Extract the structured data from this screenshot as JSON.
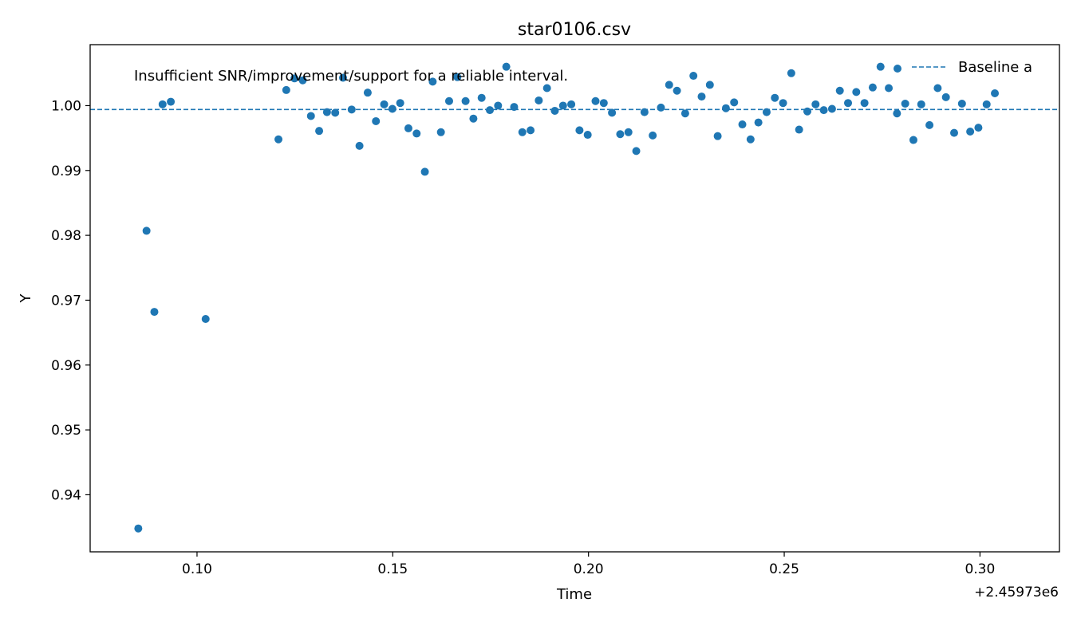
{
  "chart_data": {
    "type": "scatter",
    "title": "star0106.csv",
    "xlabel": "Time",
    "ylabel": "Y",
    "x_offset_label": "+2.45973e6",
    "annotation": "Insufficient SNR/improvement/support for a reliable interval.",
    "legend": {
      "position": "top-right",
      "entries": [
        {
          "label": "Baseline a",
          "style": "dashed-line"
        }
      ]
    },
    "grid": false,
    "xlim": [
      0.0727,
      0.3203
    ],
    "ylim": [
      0.9312,
      1.0094
    ],
    "xticks": [
      {
        "value": 0.1,
        "label": "0.10"
      },
      {
        "value": 0.15,
        "label": "0.15"
      },
      {
        "value": 0.2,
        "label": "0.20"
      },
      {
        "value": 0.25,
        "label": "0.25"
      },
      {
        "value": 0.3,
        "label": "0.30"
      }
    ],
    "yticks": [
      {
        "value": 0.94,
        "label": "0.94"
      },
      {
        "value": 0.95,
        "label": "0.95"
      },
      {
        "value": 0.96,
        "label": "0.96"
      },
      {
        "value": 0.97,
        "label": "0.97"
      },
      {
        "value": 0.98,
        "label": "0.98"
      },
      {
        "value": 0.99,
        "label": "0.99"
      },
      {
        "value": 1.0,
        "label": "1.00"
      }
    ],
    "baseline": 0.9994,
    "colors": {
      "points": "#1f77b4",
      "baseline": "#1f77b4"
    },
    "points": [
      [
        0.085,
        0.9348
      ],
      [
        0.0871,
        0.9807
      ],
      [
        0.0891,
        0.9682
      ],
      [
        0.0912,
        1.0002
      ],
      [
        0.0933,
        1.0006
      ],
      [
        0.1022,
        0.9671
      ],
      [
        0.1208,
        0.9948
      ],
      [
        0.1228,
        1.0024
      ],
      [
        0.1249,
        1.0042
      ],
      [
        0.127,
        1.0039
      ],
      [
        0.1291,
        0.9984
      ],
      [
        0.1312,
        0.9961
      ],
      [
        0.1332,
        0.999
      ],
      [
        0.1353,
        0.9989
      ],
      [
        0.1373,
        1.0043
      ],
      [
        0.1395,
        0.9994
      ],
      [
        0.1415,
        0.9938
      ],
      [
        0.1436,
        1.002
      ],
      [
        0.1457,
        0.9976
      ],
      [
        0.1478,
        1.0002
      ],
      [
        0.1499,
        0.9995
      ],
      [
        0.1519,
        1.0004
      ],
      [
        0.154,
        0.9965
      ],
      [
        0.1561,
        0.9957
      ],
      [
        0.1582,
        0.9898
      ],
      [
        0.1602,
        1.0037
      ],
      [
        0.1623,
        0.9959
      ],
      [
        0.1644,
        1.0007
      ],
      [
        0.1665,
        1.0044
      ],
      [
        0.1686,
        1.0007
      ],
      [
        0.1706,
        0.998
      ],
      [
        0.1727,
        1.0012
      ],
      [
        0.1748,
        0.9993
      ],
      [
        0.1769,
        1.0
      ],
      [
        0.179,
        1.006
      ],
      [
        0.181,
        0.9998
      ],
      [
        0.1831,
        0.9959
      ],
      [
        0.1852,
        0.9962
      ],
      [
        0.1873,
        1.0008
      ],
      [
        0.1894,
        1.0027
      ],
      [
        0.1914,
        0.9992
      ],
      [
        0.1935,
        1.0
      ],
      [
        0.1956,
        1.0002
      ],
      [
        0.1977,
        0.9962
      ],
      [
        0.1998,
        0.9955
      ],
      [
        0.2018,
        1.0007
      ],
      [
        0.2039,
        1.0004
      ],
      [
        0.206,
        0.9989
      ],
      [
        0.2081,
        0.9956
      ],
      [
        0.2102,
        0.9959
      ],
      [
        0.2122,
        0.993
      ],
      [
        0.2143,
        0.999
      ],
      [
        0.2164,
        0.9954
      ],
      [
        0.2185,
        0.9997
      ],
      [
        0.2206,
        1.0032
      ],
      [
        0.2226,
        1.0023
      ],
      [
        0.2247,
        0.9988
      ],
      [
        0.2268,
        1.0046
      ],
      [
        0.2289,
        1.0014
      ],
      [
        0.231,
        1.0032
      ],
      [
        0.233,
        0.9953
      ],
      [
        0.2351,
        0.9996
      ],
      [
        0.2372,
        1.0005
      ],
      [
        0.2393,
        0.9971
      ],
      [
        0.2414,
        0.9948
      ],
      [
        0.2434,
        0.9974
      ],
      [
        0.2455,
        0.999
      ],
      [
        0.2476,
        1.0012
      ],
      [
        0.2497,
        1.0004
      ],
      [
        0.2518,
        1.005
      ],
      [
        0.2538,
        0.9963
      ],
      [
        0.2559,
        0.9991
      ],
      [
        0.258,
        1.0002
      ],
      [
        0.2601,
        0.9993
      ],
      [
        0.2622,
        0.9995
      ],
      [
        0.2642,
        1.0023
      ],
      [
        0.2663,
        1.0004
      ],
      [
        0.2684,
        1.0021
      ],
      [
        0.2705,
        1.0004
      ],
      [
        0.2726,
        1.0028
      ],
      [
        0.2746,
        1.006
      ],
      [
        0.2767,
        1.0027
      ],
      [
        0.2788,
        0.9988
      ],
      [
        0.2809,
        1.0003
      ],
      [
        0.283,
        0.9947
      ],
      [
        0.285,
        1.0002
      ],
      [
        0.2871,
        0.997
      ],
      [
        0.2892,
        1.0027
      ],
      [
        0.2913,
        1.0013
      ],
      [
        0.2934,
        0.9958
      ],
      [
        0.2954,
        1.0003
      ],
      [
        0.2975,
        0.996
      ],
      [
        0.2996,
        0.9966
      ],
      [
        0.3017,
        1.0002
      ],
      [
        0.3038,
        1.0019
      ]
    ]
  }
}
